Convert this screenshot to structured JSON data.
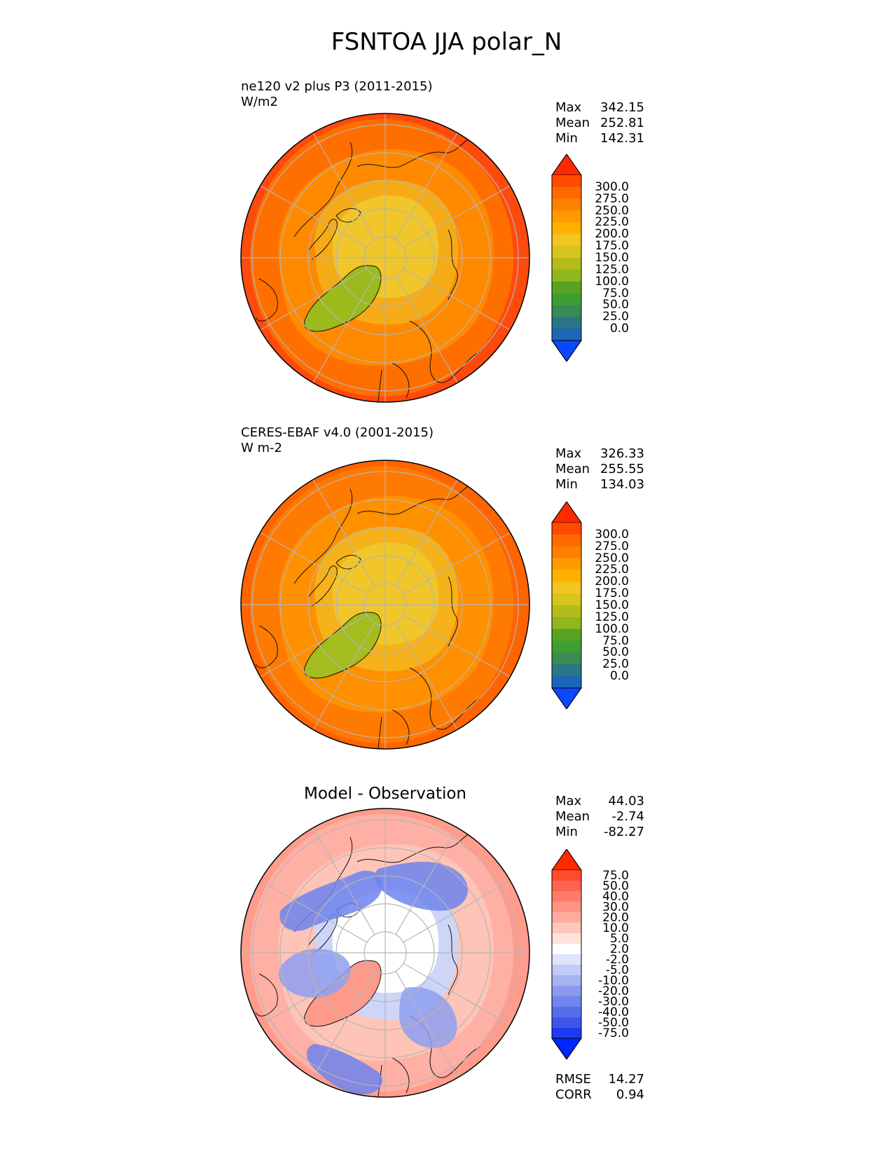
{
  "title": "FSNTOA JJA polar_N",
  "chart_data": [
    {
      "type": "heatmap",
      "projection": "north-polar-stereographic",
      "label": "ne120 v2 plus P3 (2011-2015)",
      "units": "W/m2",
      "stats": [
        {
          "name": "Max",
          "value": "342.15"
        },
        {
          "name": "Mean",
          "value": "252.81"
        },
        {
          "name": "Min",
          "value": "142.31"
        }
      ],
      "colorbar": {
        "ticks": [
          "300.0",
          "275.0",
          "250.0",
          "225.0",
          "200.0",
          "175.0",
          "150.0",
          "125.0",
          "100.0",
          "75.0",
          "50.0",
          "25.0",
          "0.0"
        ],
        "colors": [
          "#ff2a00",
          "#ff4a00",
          "#ff6a00",
          "#ff8000",
          "#ff9a00",
          "#ffb000",
          "#f2c51f",
          "#d8c41c",
          "#b4bc1c",
          "#92b61e",
          "#58a326",
          "#3e9e30",
          "#3a8a56",
          "#2a7686",
          "#1c66b8",
          "#0a48ff"
        ]
      },
      "field_colors": {
        "pole": "#f0c62a",
        "inner": "#f5ab17",
        "mid": "#ff8a00",
        "outer": "#ff6f00",
        "edge": "#ff4a0e",
        "greenland": "#9cba1c"
      }
    },
    {
      "type": "heatmap",
      "projection": "north-polar-stereographic",
      "label": "CERES-EBAF v4.0 (2001-2015)",
      "units": "W m-2",
      "stats": [
        {
          "name": "Max",
          "value": "326.33"
        },
        {
          "name": "Mean",
          "value": "255.55"
        },
        {
          "name": "Min",
          "value": "134.03"
        }
      ],
      "colorbar": {
        "ticks": [
          "300.0",
          "275.0",
          "250.0",
          "225.0",
          "200.0",
          "175.0",
          "150.0",
          "125.0",
          "100.0",
          "75.0",
          "50.0",
          "25.0",
          "0.0"
        ],
        "colors": [
          "#ff2a00",
          "#ff4a00",
          "#ff6a00",
          "#ff8000",
          "#ff9a00",
          "#ffb000",
          "#f2c51f",
          "#d8c41c",
          "#b4bc1c",
          "#92b61e",
          "#58a326",
          "#3e9e30",
          "#3a8a56",
          "#2a7686",
          "#1c66b8",
          "#0a48ff"
        ]
      },
      "field_colors": {
        "pole": "#f0c62a",
        "inner": "#f5b21a",
        "mid": "#ff9000",
        "outer": "#ff7a00",
        "edge": "#ff6400",
        "greenland": "#a3bd1e"
      }
    },
    {
      "type": "heatmap",
      "projection": "north-polar-stereographic",
      "title": "Model - Observation",
      "stats": [
        {
          "name": "Max",
          "value": "44.03"
        },
        {
          "name": "Mean",
          "value": "-2.74"
        },
        {
          "name": "Min",
          "value": "-82.27"
        }
      ],
      "colorbar": {
        "ticks": [
          "75.0",
          "50.0",
          "40.0",
          "30.0",
          "20.0",
          "10.0",
          "5.0",
          "2.0",
          "-2.0",
          "-5.0",
          "-10.0",
          "-20.0",
          "-30.0",
          "-40.0",
          "-50.0",
          "-75.0"
        ],
        "colors": [
          "#ff2a00",
          "#ff4a2c",
          "#ff6450",
          "#ff7c68",
          "#ff9484",
          "#ffaca0",
          "#ffc6bc",
          "#ffe2dc",
          "#ffffff",
          "#dfe4fb",
          "#c2cbf7",
          "#a6b4f3",
          "#8a9bef",
          "#6f84ec",
          "#566eea",
          "#3c57e8",
          "#1e3af0",
          "#0026ff"
        ]
      },
      "field_colors": {
        "pole": "#ffffff",
        "inner": "#cdd6f8",
        "mid": "#ffc4b8",
        "outer": "#ffb0a4",
        "edge": "#ff9c8c",
        "greenland": "#ff9a8a"
      },
      "summary": [
        {
          "name": "RMSE",
          "value": "14.27"
        },
        {
          "name": "CORR",
          "value": "0.94"
        }
      ]
    }
  ]
}
